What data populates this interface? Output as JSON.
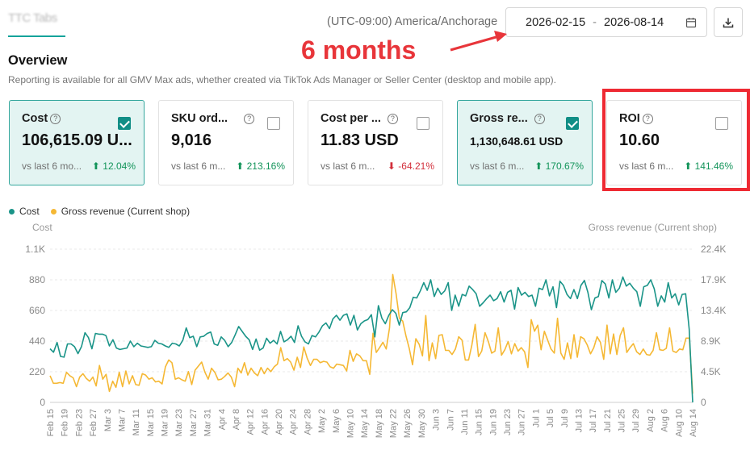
{
  "header": {
    "shop_tab": "TTC Tabs",
    "timezone": "(UTC-09:00) America/Anchorage",
    "date_start": "2026-02-15",
    "date_sep": "-",
    "date_end": "2026-08-14",
    "calendar_icon": "calendar-icon",
    "download_icon": "download-icon"
  },
  "annotation": {
    "text": "6 months",
    "color": "#e8353a"
  },
  "overview": {
    "title": "Overview",
    "subtitle": "Reporting is available for all GMV Max ads, whether created via TikTok Ads Manager or Seller Center (desktop and mobile app)."
  },
  "metrics": [
    {
      "title": "Cost",
      "value": "106,615.09 U...",
      "checked": true,
      "compare": "vs last 6 mo...",
      "delta": "12.04%",
      "trend": "up"
    },
    {
      "title": "SKU ord...",
      "value": "9,016",
      "checked": false,
      "compare": "vs last 6 m...",
      "delta": "213.16%",
      "trend": "up"
    },
    {
      "title": "Cost per ...",
      "value": "11.83 USD",
      "checked": false,
      "compare": "vs last 6 m...",
      "delta": "-64.21%",
      "trend": "down"
    },
    {
      "title": "Gross re...",
      "value": "1,130,648.61 USD",
      "checked": true,
      "compare": "vs last 6 m...",
      "delta": "170.67%",
      "trend": "up"
    },
    {
      "title": "ROI",
      "value": "10.60",
      "checked": false,
      "compare": "vs last 6 m...",
      "delta": "141.46%",
      "trend": "up"
    }
  ],
  "colors": {
    "accent": "#118e86",
    "cost_line": "#1a9488",
    "revenue_line": "#f5b834",
    "up": "#13945a",
    "down": "#d22f3b"
  },
  "chart_data": {
    "type": "line",
    "legend": [
      "Cost",
      "Gross revenue (Current shop)"
    ],
    "legend_position": "top-left",
    "ylabel_left": "Cost",
    "ylabel_right": "Gross revenue (Current shop)",
    "y_left_ticks": [
      "0",
      "220",
      "440",
      "660",
      "880",
      "1.1K"
    ],
    "y_right_ticks": [
      "0",
      "4.5K",
      "8.9K",
      "13.4K",
      "17.9K",
      "22.4K"
    ],
    "y_left_range": [
      0,
      1100
    ],
    "y_right_range": [
      0,
      22400
    ],
    "x_tick_labels": [
      "Feb 15",
      "Feb 19",
      "Feb 23",
      "Feb 27",
      "Mar 3",
      "Mar 7",
      "Mar 11",
      "Mar 15",
      "Mar 19",
      "Mar 23",
      "Mar 27",
      "Mar 31",
      "Apr 4",
      "Apr 8",
      "Apr 12",
      "Apr 16",
      "Apr 20",
      "Apr 24",
      "Apr 28",
      "May 2",
      "May 6",
      "May 10",
      "May 14",
      "May 18",
      "May 22",
      "May 26",
      "May 30",
      "Jun 3",
      "Jun 7",
      "Jun 11",
      "Jun 15",
      "Jun 19",
      "Jun 23",
      "Jun 27",
      "Jul 1",
      "Jul 5",
      "Jul 9",
      "Jul 13",
      "Jul 17",
      "Jul 21",
      "Jul 25",
      "Jul 29",
      "Aug 2",
      "Aug 6",
      "Aug 10",
      "Aug 14"
    ],
    "grid": true,
    "series": [
      {
        "name": "Cost",
        "axis": "left",
        "values": [
          385,
          360,
          430,
          330,
          325,
          420,
          420,
          400,
          350,
          400,
          500,
          465,
          385,
          495,
          490,
          490,
          480,
          405,
          450,
          390,
          380,
          385,
          390,
          440,
          400,
          425,
          405,
          400,
          395,
          400,
          445,
          425,
          420,
          405,
          395,
          425,
          420,
          405,
          445,
          535,
          465,
          475,
          400,
          470,
          475,
          495,
          505,
          420,
          410,
          470,
          445,
          400,
          430,
          485,
          545,
          510,
          475,
          450,
          380,
          455,
          375,
          390,
          460,
          425,
          445,
          420,
          510,
          435,
          450,
          475,
          430,
          550,
          475,
          435,
          420,
          480,
          470,
          505,
          550,
          570,
          530,
          600,
          625,
          590,
          625,
          635,
          555,
          625,
          520,
          565,
          585,
          595,
          630,
          470,
          695,
          605,
          565,
          625,
          665,
          640,
          555,
          645,
          650,
          680,
          755,
          750,
          800,
          860,
          805,
          880,
          760,
          820,
          775,
          800,
          860,
          660,
          770,
          690,
          775,
          765,
          835,
          810,
          780,
          690,
          715,
          745,
          770,
          730,
          745,
          795,
          720,
          790,
          805,
          670,
          825,
          770,
          790,
          760,
          770,
          690,
          820,
          810,
          880,
          765,
          830,
          680,
          870,
          840,
          775,
          745,
          810,
          745,
          840,
          875,
          790,
          665,
          750,
          760,
          875,
          850,
          750,
          880,
          790,
          820,
          900,
          835,
          855,
          820,
          795,
          690,
          830,
          840,
          880,
          815,
          690,
          765,
          720,
          860,
          750,
          780,
          700,
          775,
          780,
          525,
          0
        ]
      },
      {
        "name": "Gross revenue (Current shop)",
        "axis": "right",
        "values": [
          3900,
          2800,
          2800,
          2900,
          2800,
          4400,
          3900,
          3600,
          2300,
          3700,
          4200,
          3500,
          3100,
          3700,
          2400,
          5400,
          3400,
          4100,
          1600,
          3100,
          2200,
          4400,
          2300,
          4600,
          2700,
          3900,
          2600,
          2500,
          4200,
          4000,
          3400,
          3600,
          3000,
          3100,
          2700,
          5200,
          6200,
          5800,
          3400,
          3600,
          3300,
          3100,
          4500,
          2600,
          4700,
          5300,
          5900,
          4400,
          3400,
          5000,
          4400,
          3300,
          3400,
          3800,
          4300,
          3700,
          2300,
          5000,
          4300,
          5800,
          4000,
          5000,
          4300,
          3900,
          5100,
          4200,
          5000,
          4500,
          5200,
          5600,
          8000,
          6100,
          6400,
          5900,
          4700,
          6600,
          5100,
          8100,
          6500,
          5400,
          6300,
          6300,
          5800,
          6000,
          5900,
          5200,
          5000,
          5600,
          5500,
          5400,
          4600,
          7600,
          6000,
          7100,
          6800,
          6100,
          6100,
          4100,
          10100,
          7300,
          8000,
          8800,
          7800,
          10900,
          18700,
          15900,
          12300,
          11900,
          9700,
          7900,
          5500,
          9300,
          8500,
          6800,
          12700,
          6100,
          8700,
          6400,
          9800,
          9900,
          7600,
          7600,
          7000,
          7800,
          9600,
          9100,
          6200,
          6200,
          8400,
          11400,
          6700,
          7500,
          10200,
          8900,
          7200,
          7500,
          10900,
          6900,
          7700,
          8900,
          7100,
          8600,
          7500,
          8000,
          7400,
          5100,
          12100,
          10400,
          11300,
          7700,
          10400,
          9100,
          7800,
          7200,
          12300,
          7200,
          6300,
          8700,
          6400,
          9900,
          6600,
          9600,
          9300,
          8400,
          7100,
          8000,
          9600,
          8800,
          6300,
          11300,
          7100,
          10000,
          7000,
          9800,
          10900,
          7300,
          8000,
          8600,
          7400,
          7000,
          7800,
          7000,
          6900,
          7600,
          10200,
          7700,
          7600,
          7900,
          10900,
          7500,
          7300,
          7800,
          7700,
          9400,
          9400,
          1300
        ]
      }
    ]
  }
}
